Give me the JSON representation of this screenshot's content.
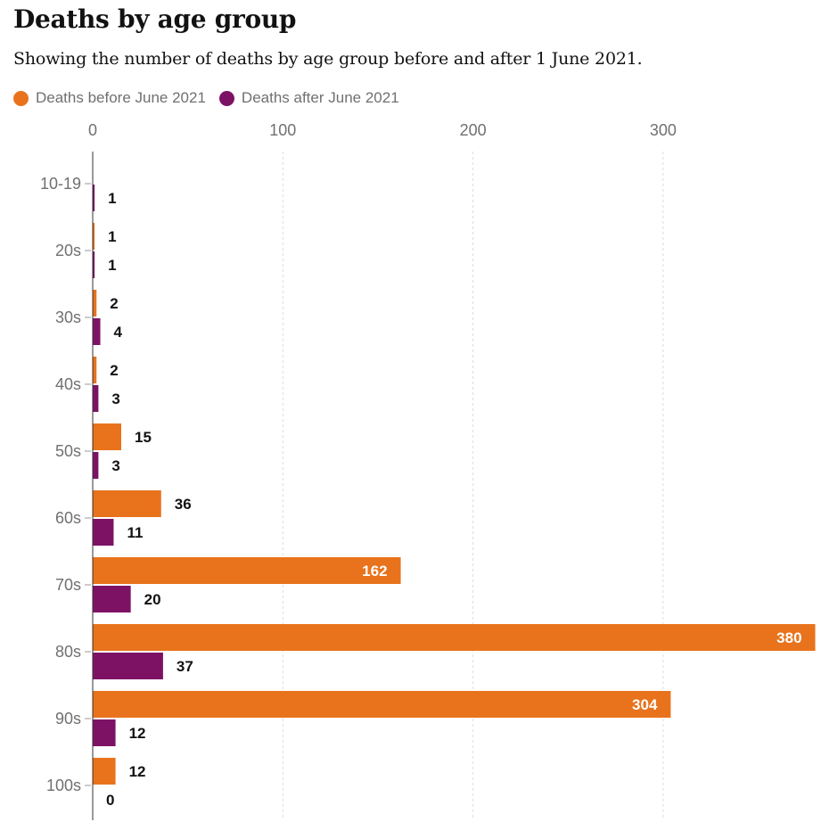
{
  "chart_data": {
    "type": "bar",
    "orientation": "horizontal",
    "title": "Deaths by age group",
    "subtitle": "Showing the number of deaths by age group before and after 1 June 2021.",
    "categories": [
      "10-19",
      "20s",
      "30s",
      "40s",
      "50s",
      "60s",
      "70s",
      "80s",
      "90s",
      "100s"
    ],
    "series": [
      {
        "name": "Deaths before June 2021",
        "color": "#e8731c",
        "values": [
          null,
          1,
          2,
          2,
          15,
          36,
          162,
          380,
          304,
          12
        ]
      },
      {
        "name": "Deaths after June 2021",
        "color": "#7d1265",
        "values": [
          1,
          1,
          4,
          3,
          3,
          11,
          20,
          37,
          12,
          0
        ]
      }
    ],
    "x_ticks": [
      0,
      100,
      200,
      300
    ],
    "xlim": [
      0,
      380
    ],
    "grid": "vertical dashed",
    "axis_position": "top",
    "legend_position": "top-left"
  }
}
